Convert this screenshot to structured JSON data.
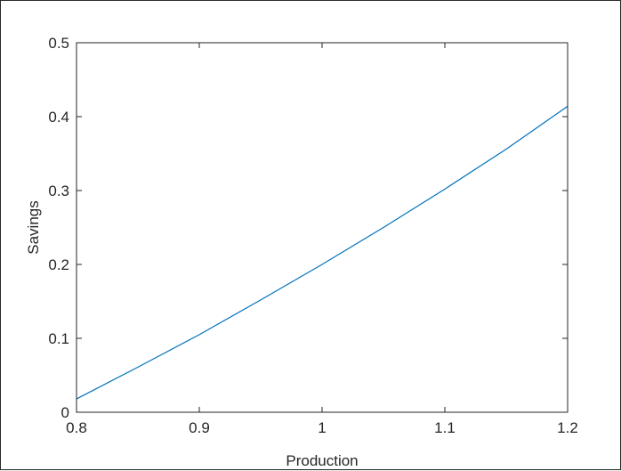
{
  "chart_data": {
    "type": "line",
    "title": "",
    "xlabel": "Production",
    "ylabel": "Savings",
    "xlim": [
      0.8,
      1.2
    ],
    "ylim": [
      0,
      0.5
    ],
    "xticks": [
      "0.8",
      "0.9",
      "1",
      "1.1",
      "1.2"
    ],
    "yticks": [
      "0",
      "0.1",
      "0.2",
      "0.3",
      "0.4",
      "0.5"
    ],
    "grid": false,
    "legend": "none",
    "series": [
      {
        "color": "#0072bd",
        "x": [
          0.8,
          0.85,
          0.9,
          0.95,
          1.0,
          1.05,
          1.1,
          1.15,
          1.2
        ],
        "y": [
          0.018,
          0.061,
          0.105,
          0.152,
          0.2,
          0.25,
          0.302,
          0.356,
          0.414
        ]
      }
    ]
  }
}
